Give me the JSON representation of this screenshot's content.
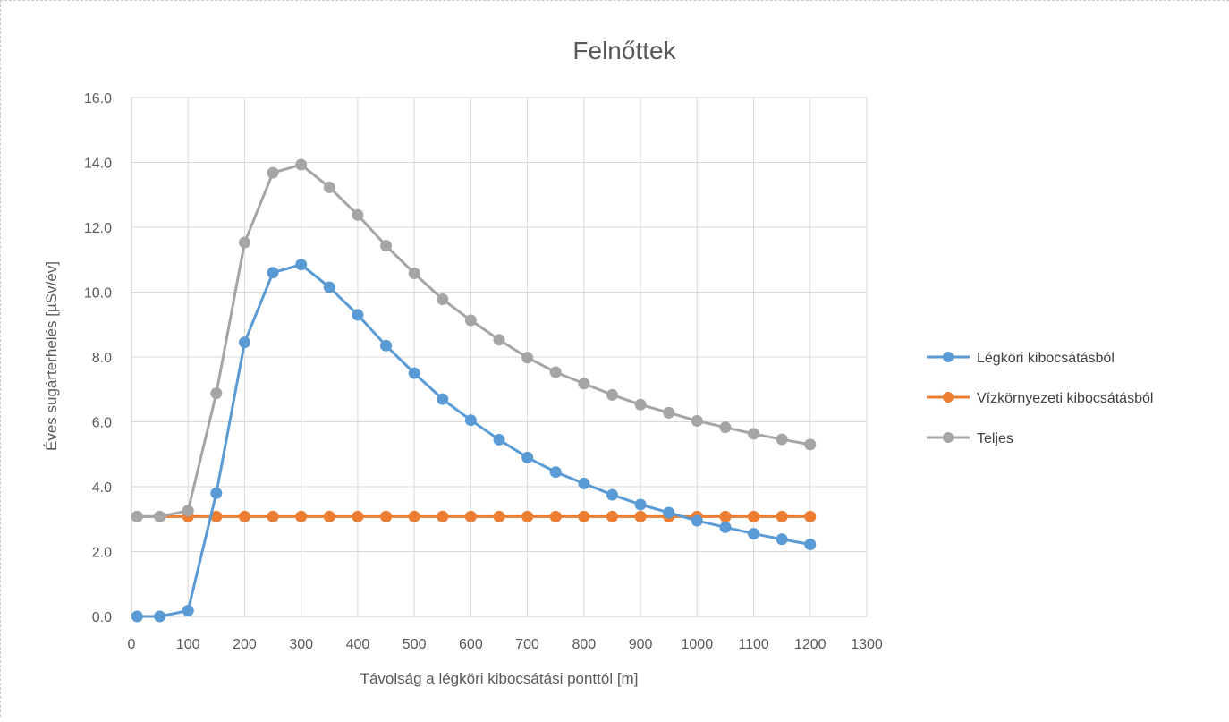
{
  "chart_data": {
    "type": "line",
    "title": "Felnőttek",
    "xlabel": "Távolság a légköri kibocsátási ponttól [m]",
    "ylabel": "Éves sugárterhelés [µSv/év]",
    "xlim": [
      0,
      1300
    ],
    "ylim": [
      0,
      16
    ],
    "x_ticks": [
      "0",
      "100",
      "200",
      "300",
      "400",
      "500",
      "600",
      "700",
      "800",
      "900",
      "1000",
      "1100",
      "1200",
      "1300"
    ],
    "y_ticks": [
      "0.0",
      "2.0",
      "4.0",
      "6.0",
      "8.0",
      "10.0",
      "12.0",
      "14.0",
      "16.0"
    ],
    "x": [
      10,
      50,
      100,
      150,
      200,
      250,
      300,
      350,
      400,
      450,
      500,
      550,
      600,
      650,
      700,
      750,
      800,
      850,
      900,
      950,
      1000,
      1050,
      1100,
      1150,
      1200
    ],
    "series": [
      {
        "name": "Légköri kibocsátásból",
        "color": "#5B9BD5",
        "values": [
          0.0,
          0.0,
          0.18,
          3.8,
          8.45,
          10.6,
          10.85,
          10.15,
          9.3,
          8.35,
          7.5,
          6.7,
          6.05,
          5.45,
          4.9,
          4.45,
          4.1,
          3.75,
          3.45,
          3.2,
          2.95,
          2.75,
          2.55,
          2.38,
          2.22
        ]
      },
      {
        "name": "Vízkörnyezeti kibocsátásból",
        "color": "#ED7D31",
        "values": [
          3.08,
          3.08,
          3.08,
          3.08,
          3.08,
          3.08,
          3.08,
          3.08,
          3.08,
          3.08,
          3.08,
          3.08,
          3.08,
          3.08,
          3.08,
          3.08,
          3.08,
          3.08,
          3.08,
          3.08,
          3.08,
          3.08,
          3.08,
          3.08,
          3.08
        ]
      },
      {
        "name": "Teljes",
        "color": "#A5A5A5",
        "values": [
          3.08,
          3.08,
          3.26,
          6.88,
          11.53,
          13.68,
          13.93,
          13.23,
          12.38,
          11.43,
          10.58,
          9.78,
          9.13,
          8.53,
          7.98,
          7.53,
          7.18,
          6.83,
          6.53,
          6.28,
          6.03,
          5.83,
          5.63,
          5.46,
          5.3
        ]
      }
    ],
    "grid": true,
    "legend_position": "right"
  }
}
